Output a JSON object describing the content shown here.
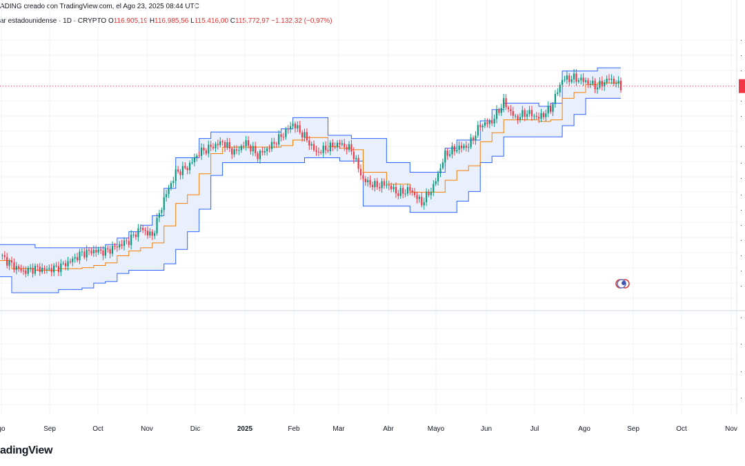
{
  "header": {
    "attribution": "ADING creado con TradingView.com, el Ago 23, 2025 08:44 UTC",
    "symbol": "ar estadounidense · 1D · CRYPTO",
    "open_label": "O",
    "open_value": "116.905,19",
    "high_label": "H",
    "high_value": "116.985,56",
    "low_label": "L",
    "low_value": "115.416,00",
    "close_label": "C",
    "close_value": "115.772,97",
    "change": "−1.132,32 (−0,97%)"
  },
  "brand": "adingView",
  "colors": {
    "up": "#089981",
    "down": "#f23645",
    "band": "#2962ff",
    "band_fill": "#eaf0fb",
    "basis": "#f57c00",
    "grid": "#f0f3fa",
    "price_line": "#f23645"
  },
  "chart_data": {
    "type": "candlestick",
    "title": "",
    "x_labels": [
      "go",
      "Sep",
      "Oct",
      "Nov",
      "Dic",
      "2025",
      "Feb",
      "Mar",
      "Abr",
      "Mayo",
      "Jun",
      "Jul",
      "Ago",
      "Sep",
      "Oct",
      "Nov"
    ],
    "y_axis_labels_truncated": true,
    "ylim": [
      47000,
      134000
    ],
    "indicator": "Donchian channel (upper, lower, basis)",
    "series": [
      {
        "name": "close",
        "values": [
          63200,
          60200,
          58100,
          59100,
          58700,
          59400,
          61300,
          63800,
          64500,
          64300,
          66000,
          67700,
          71600,
          69100,
          80600,
          88800,
          90500,
          95100,
          96800,
          98400,
          95100,
          98200,
          94200,
          96800,
          100100,
          104100,
          100100,
          95100,
          96600,
          97900,
          95900,
          86600,
          84800,
          85200,
          82400,
          83600,
          79400,
          84500,
          94500,
          96500,
          97200,
          103600,
          104800,
          110800,
          105800,
          107600,
          105900,
          108800,
          117900,
          118300,
          117300,
          115600,
          118100,
          115800
        ]
      },
      {
        "name": "upper",
        "values": [
          66500,
          66500,
          66500,
          65500,
          65500,
          65500,
          65500,
          65500,
          65500,
          66500,
          68500,
          70500,
          72500,
          75500,
          84000,
          93500,
          93500,
          99500,
          101500,
          101500,
          101500,
          101500,
          101500,
          101500,
          102500,
          106000,
          106000,
          106000,
          100500,
          100500,
          99500,
          99500,
          99500,
          92000,
          92000,
          89000,
          89000,
          89000,
          96500,
          99000,
          99000,
          105000,
          108500,
          110500,
          110500,
          110500,
          109500,
          110500,
          120500,
          120500,
          120500,
          121500,
          121500,
          121500
        ]
      },
      {
        "name": "lower",
        "values": [
          56500,
          51500,
          51500,
          51500,
          51500,
          52500,
          52500,
          53000,
          54500,
          55000,
          57500,
          58500,
          58500,
          58500,
          60500,
          65000,
          70500,
          77500,
          88000,
          92000,
          92000,
          92000,
          92000,
          92000,
          92000,
          92000,
          93500,
          93500,
          93500,
          92500,
          92500,
          78500,
          78500,
          78500,
          78500,
          76500,
          76500,
          76500,
          76500,
          80000,
          83000,
          92000,
          94000,
          100000,
          100000,
          100000,
          100000,
          100000,
          103500,
          107000,
          112000,
          112000,
          112000,
          112000
        ]
      },
      {
        "name": "basis",
        "values": [
          61500,
          59000,
          59000,
          58500,
          58500,
          59000,
          59000,
          59300,
          60000,
          60800,
          63000,
          64500,
          65500,
          67000,
          72300,
          79300,
          82000,
          88500,
          94800,
          96800,
          96800,
          96800,
          96800,
          96800,
          97300,
          99000,
          99800,
          99800,
          97000,
          96500,
          96000,
          89000,
          89000,
          85300,
          85300,
          82800,
          82800,
          82800,
          86500,
          89500,
          91000,
          98500,
          101300,
          105300,
          105300,
          105300,
          104800,
          105300,
          112000,
          113800,
          116300,
          116800,
          116800,
          116800
        ]
      }
    ]
  }
}
